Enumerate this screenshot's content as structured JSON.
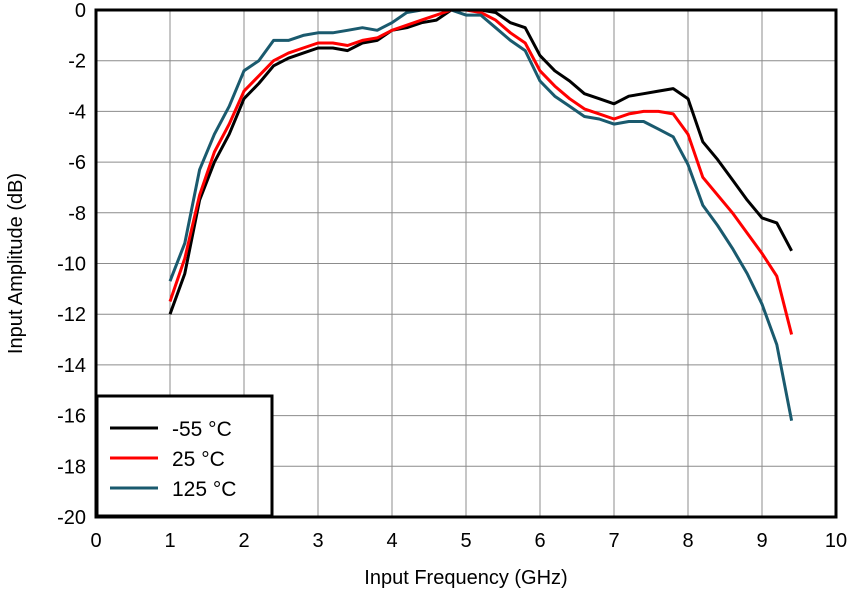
{
  "chart_data": {
    "type": "line",
    "xlabel": "Input Frequency (GHz)",
    "ylabel": "Input Amplitude (dB)",
    "xlim": [
      0,
      10
    ],
    "ylim": [
      -20,
      0
    ],
    "xticks": [
      0,
      1,
      2,
      3,
      4,
      5,
      6,
      7,
      8,
      9,
      10
    ],
    "yticks": [
      0,
      -2,
      -4,
      -6,
      -8,
      -10,
      -12,
      -14,
      -16,
      -18,
      -20
    ],
    "grid": true,
    "legend_position": "bottom-left",
    "series": [
      {
        "name": "-55 °C",
        "color": "#000000",
        "x": [
          1.0,
          1.2,
          1.4,
          1.6,
          1.8,
          2.0,
          2.2,
          2.4,
          2.6,
          2.8,
          3.0,
          3.2,
          3.4,
          3.6,
          3.8,
          4.0,
          4.2,
          4.4,
          4.6,
          4.8,
          5.0,
          5.2,
          5.4,
          5.6,
          5.8,
          6.0,
          6.2,
          6.4,
          6.6,
          6.8,
          7.0,
          7.2,
          7.4,
          7.6,
          7.8,
          8.0,
          8.2,
          8.4,
          8.6,
          8.8,
          9.0,
          9.2,
          9.4
        ],
        "y": [
          -12.0,
          -10.4,
          -7.5,
          -6.0,
          -4.9,
          -3.5,
          -2.9,
          -2.2,
          -1.9,
          -1.7,
          -1.5,
          -1.5,
          -1.6,
          -1.3,
          -1.2,
          -0.8,
          -0.7,
          -0.5,
          -0.4,
          0.0,
          0.0,
          0.0,
          -0.1,
          -0.5,
          -0.7,
          -1.8,
          -2.4,
          -2.8,
          -3.3,
          -3.5,
          -3.7,
          -3.4,
          -3.3,
          -3.2,
          -3.1,
          -3.5,
          -5.2,
          -5.9,
          -6.7,
          -7.5,
          -8.2,
          -8.4,
          -9.5
        ]
      },
      {
        "name": "25 °C",
        "color": "#ff0000",
        "x": [
          1.0,
          1.2,
          1.4,
          1.6,
          1.8,
          2.0,
          2.2,
          2.4,
          2.6,
          2.8,
          3.0,
          3.2,
          3.4,
          3.6,
          3.8,
          4.0,
          4.2,
          4.4,
          4.6,
          4.8,
          5.0,
          5.2,
          5.4,
          5.6,
          5.8,
          6.0,
          6.2,
          6.4,
          6.6,
          6.8,
          7.0,
          7.2,
          7.4,
          7.6,
          7.8,
          8.0,
          8.2,
          8.4,
          8.6,
          8.8,
          9.0,
          9.2,
          9.4
        ],
        "y": [
          -11.5,
          -9.8,
          -7.3,
          -5.6,
          -4.5,
          -3.2,
          -2.6,
          -2.0,
          -1.7,
          -1.5,
          -1.3,
          -1.3,
          -1.4,
          -1.2,
          -1.1,
          -0.8,
          -0.6,
          -0.4,
          -0.2,
          0.0,
          0.0,
          -0.1,
          -0.4,
          -0.9,
          -1.3,
          -2.4,
          -3.0,
          -3.5,
          -3.9,
          -4.1,
          -4.3,
          -4.1,
          -4.0,
          -4.0,
          -4.1,
          -4.9,
          -6.6,
          -7.3,
          -8.0,
          -8.8,
          -9.6,
          -10.5,
          -12.8
        ]
      },
      {
        "name": "125 °C",
        "color": "#1a5a6e",
        "x": [
          1.0,
          1.2,
          1.4,
          1.6,
          1.8,
          2.0,
          2.2,
          2.4,
          2.6,
          2.8,
          3.0,
          3.2,
          3.4,
          3.6,
          3.8,
          4.0,
          4.2,
          4.4,
          4.6,
          4.8,
          5.0,
          5.2,
          5.4,
          5.6,
          5.8,
          6.0,
          6.2,
          6.4,
          6.6,
          6.8,
          7.0,
          7.2,
          7.4,
          7.6,
          7.8,
          8.0,
          8.2,
          8.4,
          8.6,
          8.8,
          9.0,
          9.2,
          9.4
        ],
        "y": [
          -10.7,
          -9.2,
          -6.3,
          -4.9,
          -3.8,
          -2.4,
          -2.0,
          -1.2,
          -1.2,
          -1.0,
          -0.9,
          -0.9,
          -0.8,
          -0.7,
          -0.8,
          -0.5,
          -0.1,
          0.0,
          0.0,
          0.0,
          -0.2,
          -0.2,
          -0.7,
          -1.2,
          -1.6,
          -2.8,
          -3.4,
          -3.8,
          -4.2,
          -4.3,
          -4.5,
          -4.4,
          -4.4,
          -4.7,
          -5.0,
          -6.1,
          -7.7,
          -8.5,
          -9.4,
          -10.4,
          -11.6,
          -13.2,
          -16.2
        ]
      }
    ]
  }
}
